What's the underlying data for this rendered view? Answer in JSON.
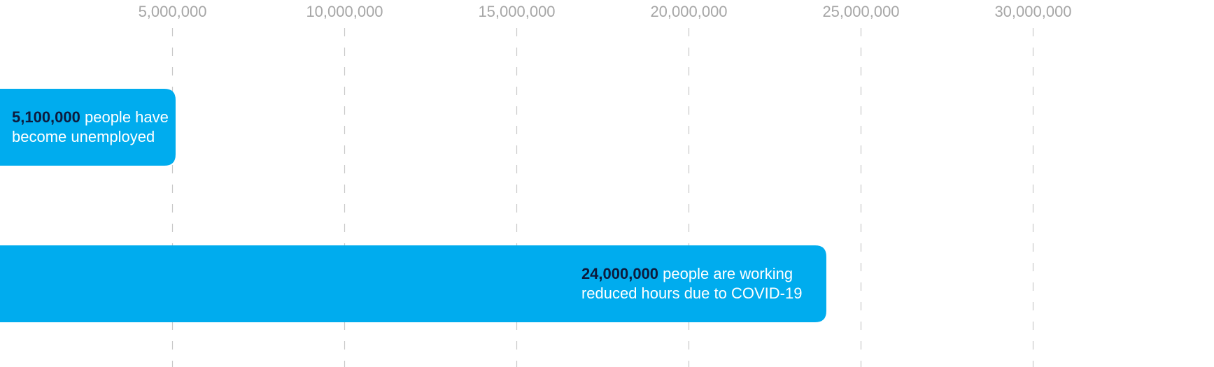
{
  "chart_data": {
    "type": "bar",
    "orientation": "horizontal",
    "xlim": [
      0,
      31500000
    ],
    "xticks": [
      {
        "value": 5000000,
        "label": "5,000,000"
      },
      {
        "value": 10000000,
        "label": "10,000,000"
      },
      {
        "value": 15000000,
        "label": "15,000,000"
      },
      {
        "value": 20000000,
        "label": "20,000,000"
      },
      {
        "value": 25000000,
        "label": "25,000,000"
      },
      {
        "value": 30000000,
        "label": "30,000,000"
      }
    ],
    "grid": true,
    "bars": [
      {
        "value": 5100000,
        "value_text": "5,100,000",
        "text_line1": " people have",
        "text_line2": "become unemployed",
        "label_align": "left"
      },
      {
        "value": 24000000,
        "value_text": "24,000,000",
        "text_line1": " people are working",
        "text_line2": "reduced hours due to COVID-19",
        "label_align": "right"
      }
    ],
    "colors": {
      "bar": "#00acee",
      "value_text": "#0d1b3d",
      "label_text": "#ffffff",
      "tick_text": "#a6a6a6",
      "grid": "#c8c8c8"
    }
  }
}
